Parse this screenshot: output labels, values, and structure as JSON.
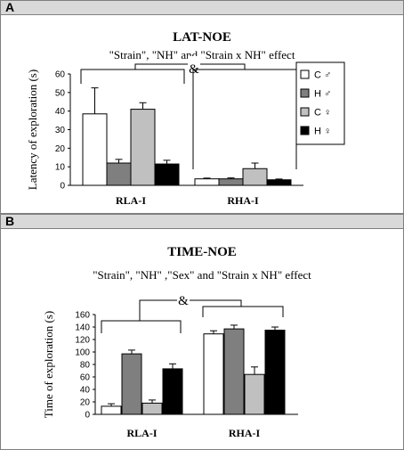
{
  "panels": {
    "a": {
      "letter": "A"
    },
    "b": {
      "letter": "B"
    }
  },
  "colors": {
    "C_male": "#ffffff",
    "H_male": "#7f7f7f",
    "C_female": "#c0c0c0",
    "H_female": "#000000",
    "stroke": "#000000"
  },
  "chart_data": [
    {
      "type": "bar",
      "panel": "A",
      "title": "LAT-NOE",
      "subtitle": "\"Strain\", \"NH\" and \"Strain x NH\" effect",
      "ylabel": "Latency of exploration (s)",
      "xlabel": "",
      "ylim": [
        0,
        60
      ],
      "yticks": [
        0,
        10,
        20,
        30,
        40,
        50,
        60
      ],
      "categories": [
        "RLA-I",
        "RHA-I"
      ],
      "series": [
        {
          "name": "C ♂",
          "color": "#ffffff",
          "values": [
            38.5,
            3.5
          ],
          "errors": [
            14,
            0.4
          ]
        },
        {
          "name": "H ♂",
          "color": "#7f7f7f",
          "values": [
            12,
            3.5
          ],
          "errors": [
            2,
            0.5
          ]
        },
        {
          "name": "C ♀",
          "color": "#c0c0c0",
          "values": [
            41,
            9
          ],
          "errors": [
            3.5,
            3
          ]
        },
        {
          "name": "H ♀",
          "color": "#000000",
          "values": [
            11.5,
            3
          ],
          "errors": [
            2,
            0.4
          ]
        }
      ],
      "annotation": "&",
      "legend": "right"
    },
    {
      "type": "bar",
      "panel": "B",
      "title": "TIME-NOE",
      "subtitle": "\"Strain\", \"NH\" ,\"Sex\" and \"Strain x NH\" effect",
      "ylabel": "Time of exploration (s)",
      "xlabel": "",
      "ylim": [
        0,
        160
      ],
      "yticks": [
        0,
        20,
        40,
        60,
        80,
        100,
        120,
        140,
        160
      ],
      "categories": [
        "RLA-I",
        "RHA-I"
      ],
      "series": [
        {
          "name": "C ♂",
          "color": "#ffffff",
          "values": [
            13,
            129
          ],
          "errors": [
            4,
            5
          ]
        },
        {
          "name": "H ♂",
          "color": "#7f7f7f",
          "values": [
            97,
            137
          ],
          "errors": [
            6,
            6
          ]
        },
        {
          "name": "C ♀",
          "color": "#c0c0c0",
          "values": [
            18,
            64
          ],
          "errors": [
            5,
            12
          ]
        },
        {
          "name": "H ♀",
          "color": "#000000",
          "values": [
            73,
            135
          ],
          "errors": [
            8,
            5
          ]
        }
      ],
      "annotation": "&"
    }
  ]
}
